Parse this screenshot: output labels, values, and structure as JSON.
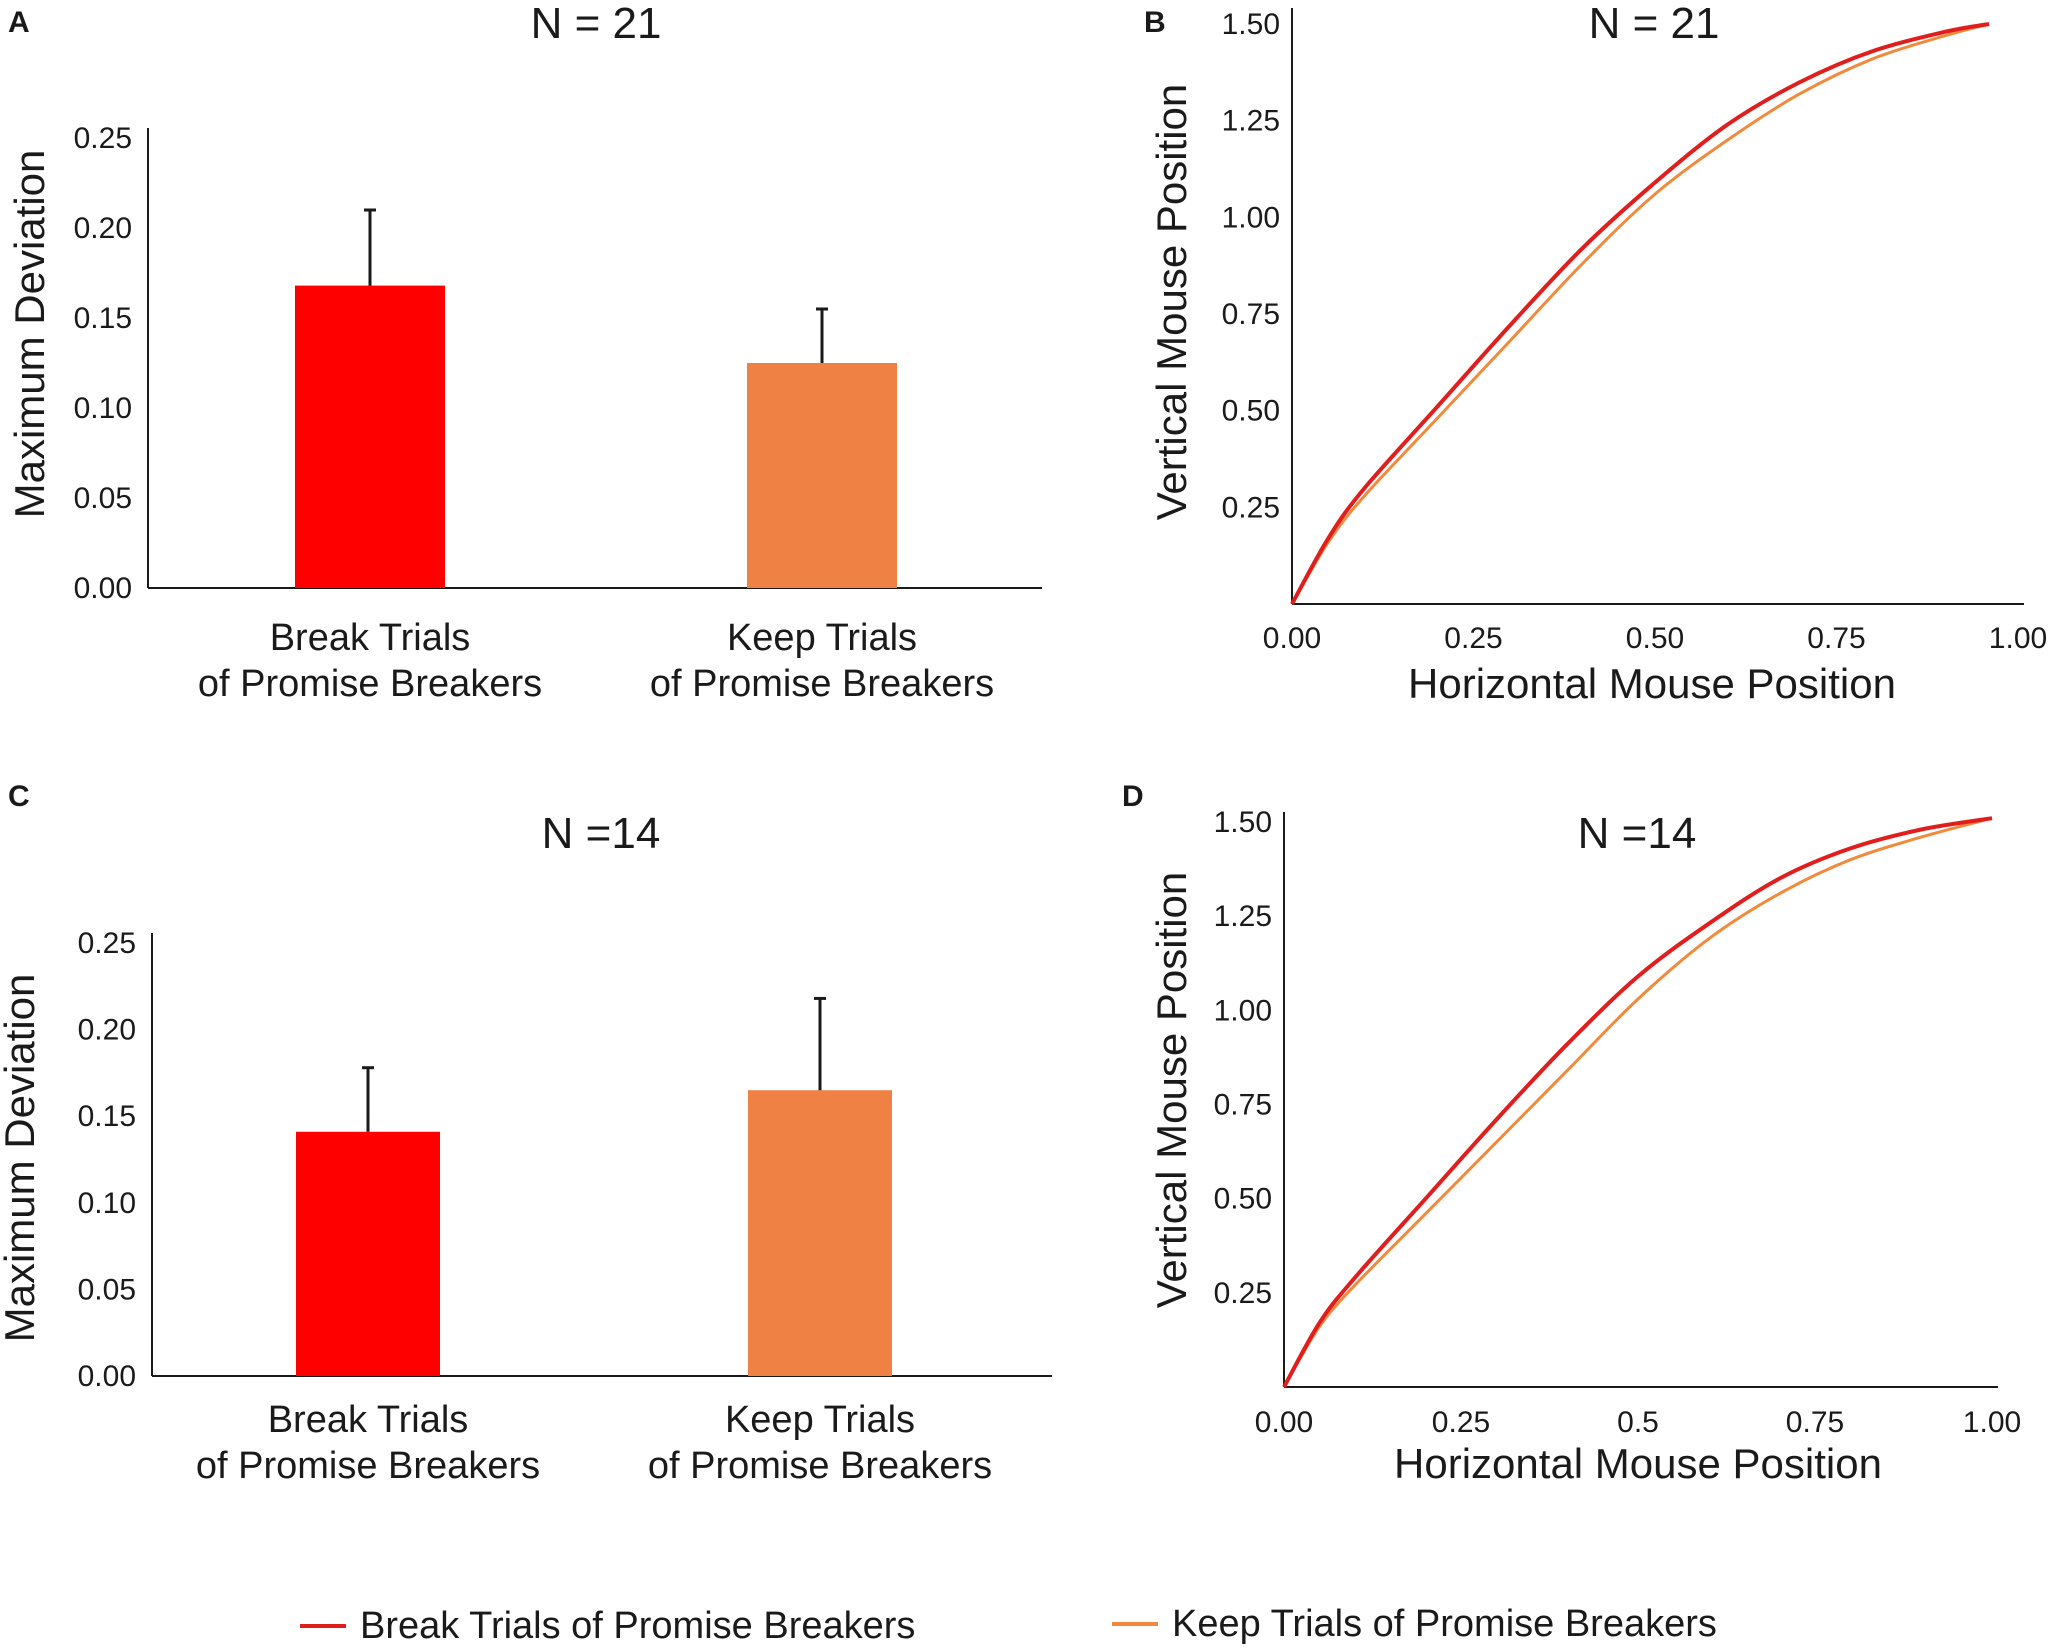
{
  "colors": {
    "break": "#ff0000",
    "keep": "#ef8144",
    "line_break": "#e01e1e",
    "line_keep": "#f08a3c"
  },
  "panels": {
    "A": {
      "letter": "A",
      "chart_data": {
        "type": "bar",
        "title": "N = 21",
        "ylabel": "Maximum Deviation",
        "xlabel": "",
        "ylim": [
          0,
          0.25
        ],
        "yticks": [
          "0.00",
          "0.05",
          "0.10",
          "0.15",
          "0.20",
          "0.25"
        ],
        "categories": [
          {
            "line1": "Break Trials",
            "line2": "of Promise Breakers"
          },
          {
            "line1": "Keep Trials",
            "line2": "of Promise Breakers"
          }
        ],
        "values": [
          0.168,
          0.125
        ],
        "errors": [
          0.042,
          0.03
        ]
      }
    },
    "B": {
      "letter": "B",
      "chart_data": {
        "type": "line",
        "title": "N = 21",
        "xlabel": "Horizontal Mouse Position",
        "ylabel": "Vertical Mouse Position",
        "xlim": [
          0,
          1.0
        ],
        "ylim": [
          0,
          1.5
        ],
        "xticks": [
          "0.00",
          "0.25",
          "0.50",
          "0.75",
          "1.00"
        ],
        "yticks": [
          "0.25",
          "0.50",
          "0.75",
          "1.00",
          "1.25",
          "1.50"
        ],
        "series": [
          {
            "name": "Break Trials of Promise Breakers",
            "x": [
              0,
              0.05,
              0.1,
              0.2,
              0.3,
              0.4,
              0.5,
              0.6,
              0.7,
              0.8,
              0.9,
              0.96
            ],
            "y": [
              0,
              0.17,
              0.3,
              0.51,
              0.72,
              0.92,
              1.09,
              1.24,
              1.35,
              1.43,
              1.48,
              1.5
            ]
          },
          {
            "name": "Keep Trials of Promise Breakers",
            "x": [
              0,
              0.05,
              0.1,
              0.2,
              0.3,
              0.4,
              0.5,
              0.6,
              0.7,
              0.8,
              0.9,
              0.96
            ],
            "y": [
              0,
              0.16,
              0.28,
              0.48,
              0.68,
              0.88,
              1.06,
              1.2,
              1.32,
              1.41,
              1.47,
              1.5
            ]
          }
        ]
      }
    },
    "C": {
      "letter": "C",
      "chart_data": {
        "type": "bar",
        "title": "N =14",
        "ylabel": "Maximum Deviation",
        "xlabel": "",
        "ylim": [
          0,
          0.25
        ],
        "yticks": [
          "0.00",
          "0.05",
          "0.10",
          "0.15",
          "0.20",
          "0.25"
        ],
        "categories": [
          {
            "line1": "Break Trials",
            "line2": "of Promise Breakers"
          },
          {
            "line1": "Keep Trials",
            "line2": "of Promise Breakers"
          }
        ],
        "values": [
          0.141,
          0.165
        ],
        "errors": [
          0.037,
          0.053
        ]
      }
    },
    "D": {
      "letter": "D",
      "chart_data": {
        "type": "line",
        "title": "N =14",
        "xlabel": "Horizontal Mouse Position",
        "ylabel": "Vertical Mouse Position",
        "xlim": [
          0,
          1.0
        ],
        "ylim": [
          0,
          1.5
        ],
        "xticks": [
          "0.00",
          "0.25",
          "0.5",
          "0.75",
          "1.00"
        ],
        "yticks": [
          "0.25",
          "0.50",
          "0.75",
          "1.00",
          "1.25",
          "1.50"
        ],
        "series": [
          {
            "name": "Break Trials of Promise Breakers",
            "x": [
              0,
              0.05,
              0.1,
              0.2,
              0.3,
              0.4,
              0.5,
              0.6,
              0.7,
              0.8,
              0.9,
              1.0
            ],
            "y": [
              0,
              0.17,
              0.29,
              0.5,
              0.71,
              0.91,
              1.09,
              1.23,
              1.35,
              1.43,
              1.48,
              1.51
            ]
          },
          {
            "name": "Keep Trials of Promise Breakers",
            "x": [
              0,
              0.05,
              0.1,
              0.2,
              0.3,
              0.4,
              0.5,
              0.6,
              0.7,
              0.8,
              0.9,
              1.0
            ],
            "y": [
              0,
              0.16,
              0.27,
              0.46,
              0.65,
              0.84,
              1.03,
              1.19,
              1.31,
              1.4,
              1.46,
              1.51
            ]
          }
        ]
      }
    }
  },
  "legend": [
    {
      "label": "Break Trials of Promise Breakers"
    },
    {
      "label": "Keep Trials of Promise Breakers"
    }
  ]
}
